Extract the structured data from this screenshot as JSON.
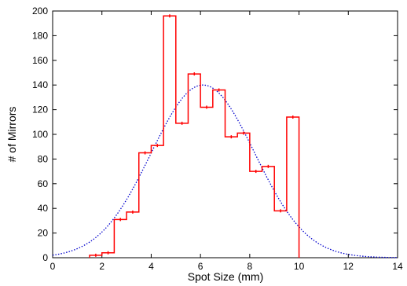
{
  "chart_data": {
    "type": "histogram",
    "xlabel": "Spot Size (mm)",
    "ylabel": "# of Mirrors",
    "xlim": [
      0,
      14
    ],
    "ylim": [
      0,
      200
    ],
    "x_ticks": [
      0,
      2,
      4,
      6,
      8,
      10,
      12,
      14
    ],
    "y_ticks": [
      0,
      20,
      40,
      60,
      80,
      100,
      120,
      140,
      160,
      180,
      200
    ],
    "grid": false,
    "bin_width": 0.5,
    "series": [
      {
        "type": "step",
        "color": "#ff0000",
        "bins": [
          {
            "x_start": 1.5,
            "x_end": 2.0,
            "value": 2
          },
          {
            "x_start": 2.0,
            "x_end": 2.5,
            "value": 4
          },
          {
            "x_start": 2.5,
            "x_end": 3.0,
            "value": 31
          },
          {
            "x_start": 3.0,
            "x_end": 3.5,
            "value": 37
          },
          {
            "x_start": 3.5,
            "x_end": 4.0,
            "value": 85
          },
          {
            "x_start": 4.0,
            "x_end": 4.5,
            "value": 91
          },
          {
            "x_start": 4.5,
            "x_end": 5.0,
            "value": 196
          },
          {
            "x_start": 5.0,
            "x_end": 5.5,
            "value": 109
          },
          {
            "x_start": 5.5,
            "x_end": 6.0,
            "value": 149
          },
          {
            "x_start": 6.0,
            "x_end": 6.5,
            "value": 122
          },
          {
            "x_start": 6.5,
            "x_end": 7.0,
            "value": 136
          },
          {
            "x_start": 7.0,
            "x_end": 7.5,
            "value": 98
          },
          {
            "x_start": 7.5,
            "x_end": 8.0,
            "value": 101
          },
          {
            "x_start": 8.0,
            "x_end": 8.5,
            "value": 70
          },
          {
            "x_start": 8.5,
            "x_end": 9.0,
            "value": 74
          },
          {
            "x_start": 9.0,
            "x_end": 9.5,
            "value": 38
          },
          {
            "x_start": 9.5,
            "x_end": 10.0,
            "value": 114
          }
        ]
      },
      {
        "type": "gaussian_fit",
        "color": "#0000cc",
        "style": "dotted",
        "amplitude": 140,
        "mean": 6.1,
        "sigma": 2.1
      }
    ]
  }
}
